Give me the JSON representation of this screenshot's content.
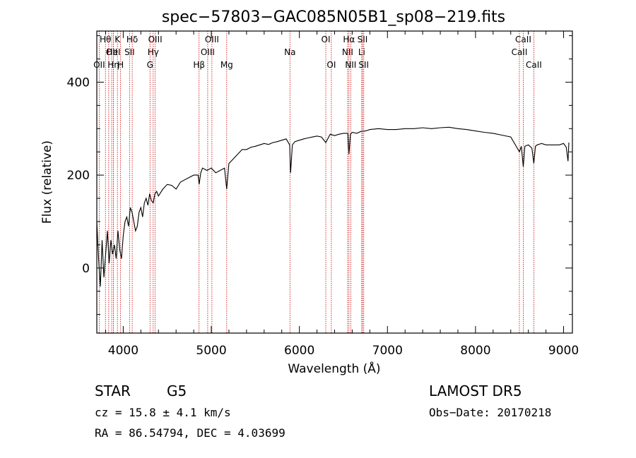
{
  "chart_data": {
    "type": "line",
    "title": "spec−57803−GAC085N05B1_sp08−219.fits",
    "xlabel": "Wavelength (Å)",
    "ylabel": "Flux (relative)",
    "xlim": [
      3700,
      9100
    ],
    "ylim": [
      -140,
      510
    ],
    "x_ticks": [
      4000,
      5000,
      6000,
      7000,
      8000,
      9000
    ],
    "y_ticks": [
      0,
      200,
      400
    ],
    "grid": false,
    "line_color": "#000000",
    "marker_color": "#cc0000",
    "series": [
      {
        "x": [
          3700,
          3720,
          3740,
          3760,
          3780,
          3800,
          3820,
          3840,
          3860,
          3880,
          3900,
          3920,
          3940,
          3960,
          3980,
          4000,
          4020,
          4040,
          4060,
          4080,
          4100,
          4120,
          4140,
          4160,
          4180,
          4200,
          4220,
          4240,
          4260,
          4280,
          4300,
          4320,
          4340,
          4360,
          4380,
          4400,
          4450,
          4500,
          4550,
          4600,
          4650,
          4700,
          4750,
          4800,
          4850,
          4862,
          4880,
          4900,
          4950,
          5000,
          5050,
          5100,
          5150,
          5175,
          5200,
          5250,
          5300,
          5350,
          5400,
          5450,
          5500,
          5550,
          5600,
          5650,
          5700,
          5750,
          5800,
          5850,
          5890,
          5900,
          5920,
          5950,
          6000,
          6050,
          6100,
          6150,
          6200,
          6250,
          6300,
          6350,
          6400,
          6450,
          6500,
          6550,
          6563,
          6580,
          6600,
          6650,
          6700,
          6750,
          6800,
          6900,
          7000,
          7100,
          7200,
          7300,
          7400,
          7500,
          7600,
          7700,
          7800,
          7900,
          8000,
          8100,
          8200,
          8300,
          8400,
          8498,
          8520,
          8542,
          8560,
          8600,
          8640,
          8662,
          8680,
          8700,
          8750,
          8800,
          8850,
          8900,
          8950,
          9000,
          9030,
          9050,
          9060
        ],
        "y": [
          100,
          20,
          -40,
          60,
          -20,
          30,
          80,
          10,
          60,
          30,
          50,
          20,
          80,
          40,
          20,
          70,
          100,
          110,
          90,
          130,
          120,
          100,
          80,
          90,
          120,
          130,
          110,
          140,
          150,
          135,
          160,
          145,
          140,
          160,
          165,
          155,
          170,
          180,
          178,
          170,
          185,
          190,
          195,
          200,
          200,
          180,
          205,
          215,
          210,
          215,
          205,
          210,
          215,
          170,
          225,
          235,
          245,
          255,
          255,
          260,
          262,
          265,
          268,
          266,
          270,
          272,
          275,
          278,
          265,
          205,
          265,
          272,
          275,
          278,
          280,
          282,
          284,
          282,
          270,
          288,
          285,
          288,
          290,
          290,
          245,
          288,
          292,
          290,
          294,
          295,
          298,
          300,
          298,
          298,
          300,
          300,
          302,
          300,
          302,
          303,
          300,
          298,
          295,
          292,
          290,
          286,
          282,
          250,
          262,
          218,
          262,
          265,
          258,
          225,
          262,
          265,
          268,
          265,
          265,
          265,
          265,
          268,
          260,
          230,
          270
        ]
      }
    ],
    "line_markers": [
      {
        "x": 3727,
        "labels": [
          "OII"
        ],
        "row": 2
      },
      {
        "x": 3835,
        "labels": [],
        "row": 0
      },
      {
        "x": 3889,
        "labels": [
          "Hη"
        ],
        "row": 2
      },
      {
        "x": 3970,
        "labels": [
          "H"
        ],
        "row": 2
      },
      {
        "x": 3934,
        "labels": [
          "K"
        ],
        "row": 0
      },
      {
        "x": 3798,
        "labels": [
          "Hθ"
        ],
        "row": 0
      },
      {
        "x": 3869,
        "labels": [
          "OII"
        ],
        "row": 1
      },
      {
        "x": 3889,
        "labels": [
          "HeI"
        ],
        "row": 1
      },
      {
        "x": 4072,
        "labels": [
          "SII"
        ],
        "row": 1
      },
      {
        "x": 4102,
        "labels": [
          "Hδ"
        ],
        "row": 0
      },
      {
        "x": 4304,
        "labels": [
          "G"
        ],
        "row": 2
      },
      {
        "x": 4340,
        "labels": [
          "Hγ"
        ],
        "row": 1
      },
      {
        "x": 4363,
        "labels": [
          "OIII"
        ],
        "row": 0
      },
      {
        "x": 4861,
        "labels": [
          "Hβ"
        ],
        "row": 2
      },
      {
        "x": 4959,
        "labels": [
          "OIII"
        ],
        "row": 1
      },
      {
        "x": 5007,
        "labels": [
          "OIII"
        ],
        "row": 0
      },
      {
        "x": 5175,
        "labels": [
          "Mg"
        ],
        "row": 2
      },
      {
        "x": 5893,
        "labels": [
          "Na"
        ],
        "row": 1
      },
      {
        "x": 6300,
        "labels": [
          "OI"
        ],
        "row": 0
      },
      {
        "x": 6363,
        "labels": [
          "OI"
        ],
        "row": 2
      },
      {
        "x": 6548,
        "labels": [
          "NII"
        ],
        "row": 1
      },
      {
        "x": 6563,
        "labels": [
          "Hα"
        ],
        "row": 0
      },
      {
        "x": 6583,
        "labels": [
          "NII"
        ],
        "row": 2
      },
      {
        "x": 6708,
        "labels": [
          "Li"
        ],
        "row": 1
      },
      {
        "x": 6717,
        "labels": [
          "SII"
        ],
        "row": 0
      },
      {
        "x": 6731,
        "labels": [
          "SII"
        ],
        "row": 2
      },
      {
        "x": 8498,
        "labels": [
          "CaII"
        ],
        "row": 1
      },
      {
        "x": 8542,
        "labels": [
          "CaII"
        ],
        "row": 0
      },
      {
        "x": 8662,
        "labels": [
          "CaII"
        ],
        "row": 2
      }
    ]
  },
  "info": {
    "object_class": "STAR",
    "subclass": "G5",
    "survey": "LAMOST  DR5",
    "redshift": "cz =  15.8 ± 4.1 km/s",
    "obs_date": "Obs−Date: 20170218",
    "coords": "RA =  86.54794, DEC =   4.03699"
  }
}
